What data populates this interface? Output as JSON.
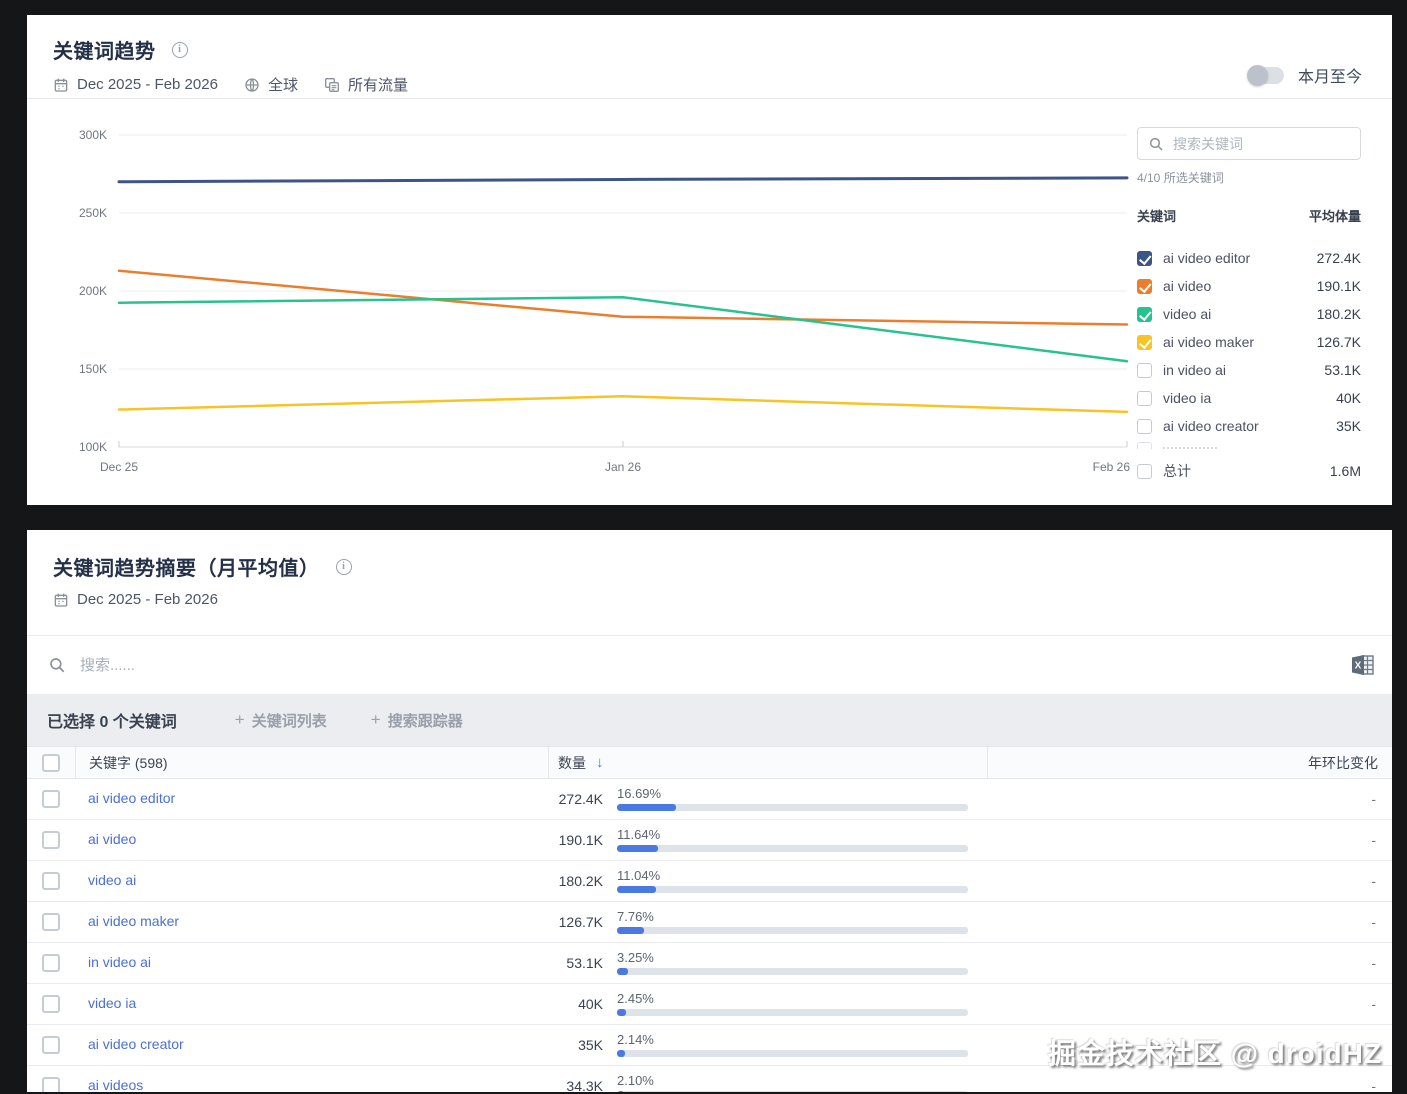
{
  "trend_card": {
    "title": "关键词趋势",
    "date_range": "Dec 2025 - Feb 2026",
    "region": "全球",
    "traffic_filter": "所有流量",
    "toggle_label": "本月至今"
  },
  "chart_data": {
    "type": "line",
    "x": [
      "Dec 25",
      "Jan 26",
      "Feb 26"
    ],
    "ylim": [
      100000,
      300000
    ],
    "yticks": [
      100000,
      150000,
      200000,
      250000,
      300000
    ],
    "ytick_labels": [
      "100K",
      "150K",
      "200K",
      "250K",
      "300K"
    ],
    "grid": true,
    "legend_position": "right",
    "series": [
      {
        "name": "ai video editor",
        "color": "#3d5486",
        "values": [
          270000,
          271500,
          272500
        ]
      },
      {
        "name": "ai video",
        "color": "#ed7d2e",
        "values": [
          213000,
          183500,
          178500
        ]
      },
      {
        "name": "video ai",
        "color": "#27c28e",
        "values": [
          192500,
          196000,
          155000
        ]
      },
      {
        "name": "ai video maker",
        "color": "#f7c325",
        "values": [
          124000,
          132500,
          122500
        ]
      }
    ]
  },
  "legend": {
    "search_placeholder": "搜索关键词",
    "selected_count": "4/10 所选关键词",
    "col_keyword": "关键词",
    "col_volume": "平均体量",
    "items": [
      {
        "label": "ai video editor",
        "value": "272.4K",
        "checked": true,
        "color": "#3d5486"
      },
      {
        "label": "ai video",
        "value": "190.1K",
        "checked": true,
        "color": "#ed7d2e"
      },
      {
        "label": "video ai",
        "value": "180.2K",
        "checked": true,
        "color": "#27c28e"
      },
      {
        "label": "ai video maker",
        "value": "126.7K",
        "checked": true,
        "color": "#f7c325"
      },
      {
        "label": "in video ai",
        "value": "53.1K",
        "checked": false,
        "color": ""
      },
      {
        "label": "video ia",
        "value": "40K",
        "checked": false,
        "color": ""
      },
      {
        "label": "ai video creator",
        "value": "35K",
        "checked": false,
        "color": ""
      }
    ],
    "total": {
      "label": "总计",
      "value": "1.6M"
    }
  },
  "summary_card": {
    "title": "关键词趋势摘要（月平均值）",
    "date_range": "Dec 2025 - Feb 2026",
    "search_placeholder": "搜索......",
    "toolbar": {
      "selected_text": "已选择 0 个关键词",
      "keyword_list_button": "关键词列表",
      "search_tracker_button": "搜索跟踪器"
    },
    "table": {
      "header": {
        "keyword": "关键字 (598)",
        "volume": "数量",
        "yoy": "年环比变化"
      },
      "rows": [
        {
          "keyword": "ai video editor",
          "volume": "272.4K",
          "percent": "16.69%",
          "yoy": "-"
        },
        {
          "keyword": "ai video",
          "volume": "190.1K",
          "percent": "11.64%",
          "yoy": "-"
        },
        {
          "keyword": "video ai",
          "volume": "180.2K",
          "percent": "11.04%",
          "yoy": "-"
        },
        {
          "keyword": "ai video maker",
          "volume": "126.7K",
          "percent": "7.76%",
          "yoy": "-"
        },
        {
          "keyword": "in video ai",
          "volume": "53.1K",
          "percent": "3.25%",
          "yoy": "-"
        },
        {
          "keyword": "video ia",
          "volume": "40K",
          "percent": "2.45%",
          "yoy": "-"
        },
        {
          "keyword": "ai video creator",
          "volume": "35K",
          "percent": "2.14%",
          "yoy": "-"
        },
        {
          "keyword": "ai videos",
          "volume": "34.3K",
          "percent": "2.10%",
          "yoy": "-"
        }
      ]
    }
  },
  "watermark": "掘金技术社区 @ droidHZ",
  "colors": {
    "accent_blue": "#4a79e2",
    "link_blue": "#4a6fd8",
    "bar_track": "#dee2e9"
  }
}
